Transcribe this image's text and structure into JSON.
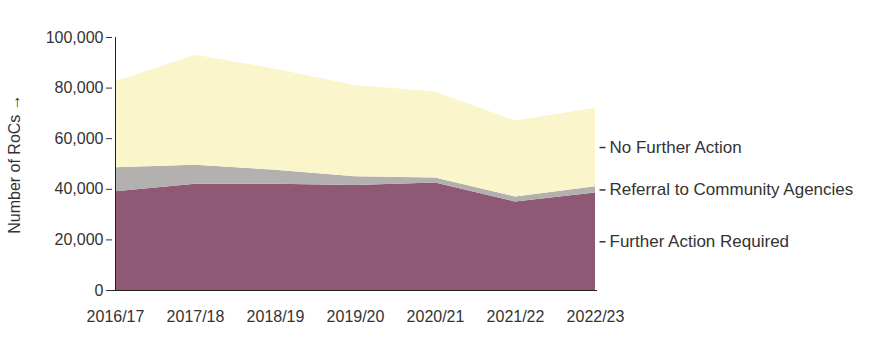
{
  "chart_data": {
    "type": "area",
    "stacked": true,
    "categories": [
      "2016/17",
      "2017/18",
      "2018/19",
      "2019/20",
      "2020/21",
      "2021/22",
      "2022/23"
    ],
    "y_label": "Number of RoCs",
    "ylim": [
      0,
      100000
    ],
    "yticks": [
      {
        "value": 0,
        "label": "0"
      },
      {
        "value": 20000,
        "label": "20,000"
      },
      {
        "value": 40000,
        "label": "40,000"
      },
      {
        "value": 60000,
        "label": "60,000"
      },
      {
        "value": 80000,
        "label": "80,000"
      },
      {
        "value": 100000,
        "label": "100,000"
      }
    ],
    "grid": false,
    "series": [
      {
        "name": "Further Action Required",
        "color": "#8f5874",
        "values": [
          39000,
          42000,
          42000,
          41500,
          42500,
          35000,
          38500
        ]
      },
      {
        "name": "Referral to Community Agencies",
        "color": "#b3b0b0",
        "values": [
          9500,
          7500,
          5500,
          3500,
          2000,
          2000,
          2500
        ]
      },
      {
        "name": "No Further Action",
        "color": "#fbf5cc",
        "values": [
          34000,
          43500,
          40000,
          36000,
          34000,
          30000,
          31000
        ]
      }
    ]
  }
}
